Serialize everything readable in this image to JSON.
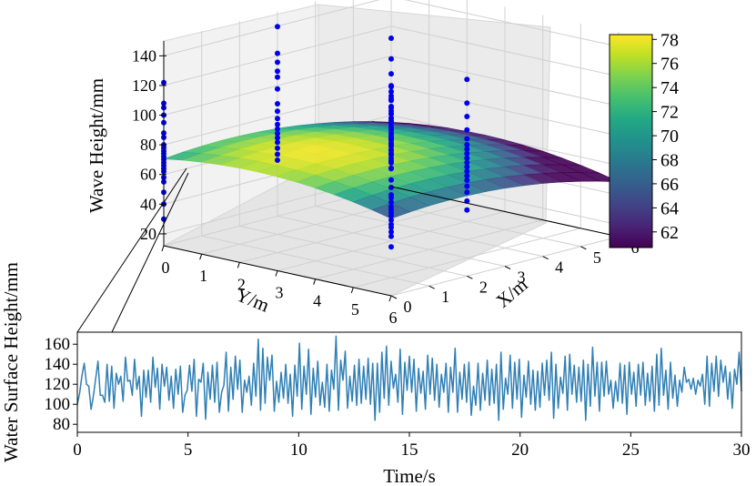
{
  "chart_data": [
    {
      "type": "surface3d",
      "zlabel": "Wave Height/mm",
      "xlabel": "X/m",
      "ylabel": "Y/m",
      "x_ticks": [
        "0",
        "1",
        "2",
        "3",
        "4",
        "5",
        "6"
      ],
      "y_ticks": [
        "0",
        "1",
        "2",
        "3",
        "4",
        "5",
        "6"
      ],
      "z_ticks": [
        "20",
        "40",
        "60",
        "80",
        "100",
        "120",
        "140"
      ],
      "xlim": [
        0,
        6
      ],
      "ylim": [
        0,
        6
      ],
      "zlim": [
        12,
        150
      ],
      "surface": {
        "center": [
          1.6,
          2.4
        ],
        "peak": 78,
        "curvature": 0.9,
        "colormap": "viridis"
      },
      "scatter_columns": [
        {
          "x": 0,
          "y": 0,
          "values": [
            30,
            40,
            48,
            55,
            58,
            62,
            64,
            66,
            68,
            70,
            72,
            74,
            76,
            78,
            80,
            85,
            88,
            95,
            100,
            105,
            108,
            122
          ]
        },
        {
          "x": 0,
          "y": 6,
          "values": [
            45,
            52,
            55,
            58,
            60,
            63,
            66,
            68,
            70,
            72,
            75,
            78,
            80,
            85,
            90,
            98,
            103,
            108,
            118,
            130
          ]
        },
        {
          "x": 2,
          "y": 1,
          "values": [
            62,
            66,
            70,
            74,
            77,
            80,
            83,
            86,
            90,
            95,
            100,
            110,
            118,
            122,
            128,
            134,
            152
          ]
        },
        {
          "x": 3,
          "y": 3,
          "values": [
            70,
            73,
            76,
            78,
            80,
            82,
            84,
            88,
            92,
            95,
            98,
            102,
            108,
            116
          ]
        },
        {
          "x": 6,
          "y": 0,
          "values": [
            24,
            28,
            31,
            34,
            37,
            40,
            44,
            46,
            48,
            50,
            53,
            55,
            58,
            61,
            63,
            66,
            70,
            73,
            76,
            80,
            88,
            98,
            112
          ]
        },
        {
          "x": 4,
          "y": 4,
          "values": [
            32,
            38,
            44,
            48,
            52,
            55,
            58,
            61,
            64,
            67,
            70,
            73,
            76,
            80,
            86,
            95,
            104,
            120
          ]
        }
      ],
      "colorbar": {
        "ticks": [
          "62",
          "64",
          "66",
          "68",
          "70",
          "72",
          "74",
          "76",
          "78"
        ],
        "min": 60.7,
        "max": 78.4
      }
    },
    {
      "type": "line",
      "xlabel": "Time/s",
      "ylabel": "Water Surface Height/mm",
      "x_ticks": [
        "0",
        "5",
        "10",
        "15",
        "20",
        "25",
        "30"
      ],
      "y_ticks": [
        "80",
        "100",
        "120",
        "140",
        "160"
      ],
      "xlim": [
        0,
        30
      ],
      "ylim": [
        72,
        172
      ],
      "color": "#2f7fb5",
      "series": [
        {
          "x_start": 0,
          "x_end": 30,
          "values": [
            100,
            111,
            128,
            141,
            120,
            118,
            95,
            108,
            125,
            143,
            109,
            109,
            102,
            140,
            103,
            138,
            96,
            131,
            120,
            128,
            103,
            147,
            123,
            124,
            109,
            145,
            115,
            128,
            88,
            134,
            107,
            134,
            102,
            147,
            117,
            136,
            95,
            140,
            118,
            137,
            104,
            128,
            96,
            135,
            110,
            138,
            92,
            109,
            114,
            139,
            113,
            145,
            88,
            125,
            122,
            141,
            85,
            132,
            105,
            139,
            102,
            142,
            92,
            112,
            119,
            152,
            93,
            137,
            105,
            148,
            115,
            144,
            92,
            124,
            112,
            128,
            99,
            141,
            108,
            165,
            94,
            156,
            101,
            147,
            124,
            149,
            93,
            123,
            102,
            132,
            106,
            140,
            101,
            130,
            88,
            139,
            108,
            161,
            95,
            138,
            110,
            155,
            90,
            136,
            107,
            143,
            99,
            122,
            97,
            140,
            93,
            134,
            115,
            168,
            94,
            144,
            124,
            153,
            96,
            128,
            103,
            139,
            99,
            145,
            101,
            138,
            105,
            146,
            100,
            141,
            84,
            141,
            92,
            152,
            106,
            158,
            99,
            143,
            116,
            130,
            102,
            155,
            90,
            142,
            114,
            148,
            112,
            145,
            93,
            136,
            111,
            133,
            95,
            149,
            110,
            146,
            104,
            140,
            97,
            130,
            112,
            141,
            92,
            137,
            112,
            156,
            92,
            132,
            105,
            140,
            102,
            142,
            89,
            118,
            99,
            141,
            94,
            131,
            104,
            144,
            99,
            135,
            101,
            140,
            84,
            152,
            95,
            126,
            110,
            149,
            96,
            142,
            105,
            145,
            87,
            129,
            107,
            143,
            100,
            134,
            94,
            133,
            97,
            141,
            109,
            144,
            104,
            152,
            86,
            140,
            96,
            127,
            111,
            148,
            94,
            150,
            110,
            139,
            102,
            137,
            103,
            144,
            84,
            140,
            98,
            157,
            108,
            142,
            93,
            142,
            108,
            143,
            110,
            124,
            96,
            123,
            103,
            141,
            101,
            139,
            90,
            142,
            110,
            132,
            98,
            140,
            109,
            142,
            99,
            131,
            103,
            138,
            93,
            150,
            99,
            156,
            109,
            134,
            95,
            142,
            106,
            129,
            98,
            124,
            112,
            137,
            122,
            125,
            115,
            126,
            110,
            124,
            118,
            130,
            100,
            148,
            98,
            141,
            113,
            148,
            108,
            144,
            122,
            138,
            105,
            132,
            96,
            135,
            120,
            152,
            113
          ]
        }
      ]
    }
  ]
}
